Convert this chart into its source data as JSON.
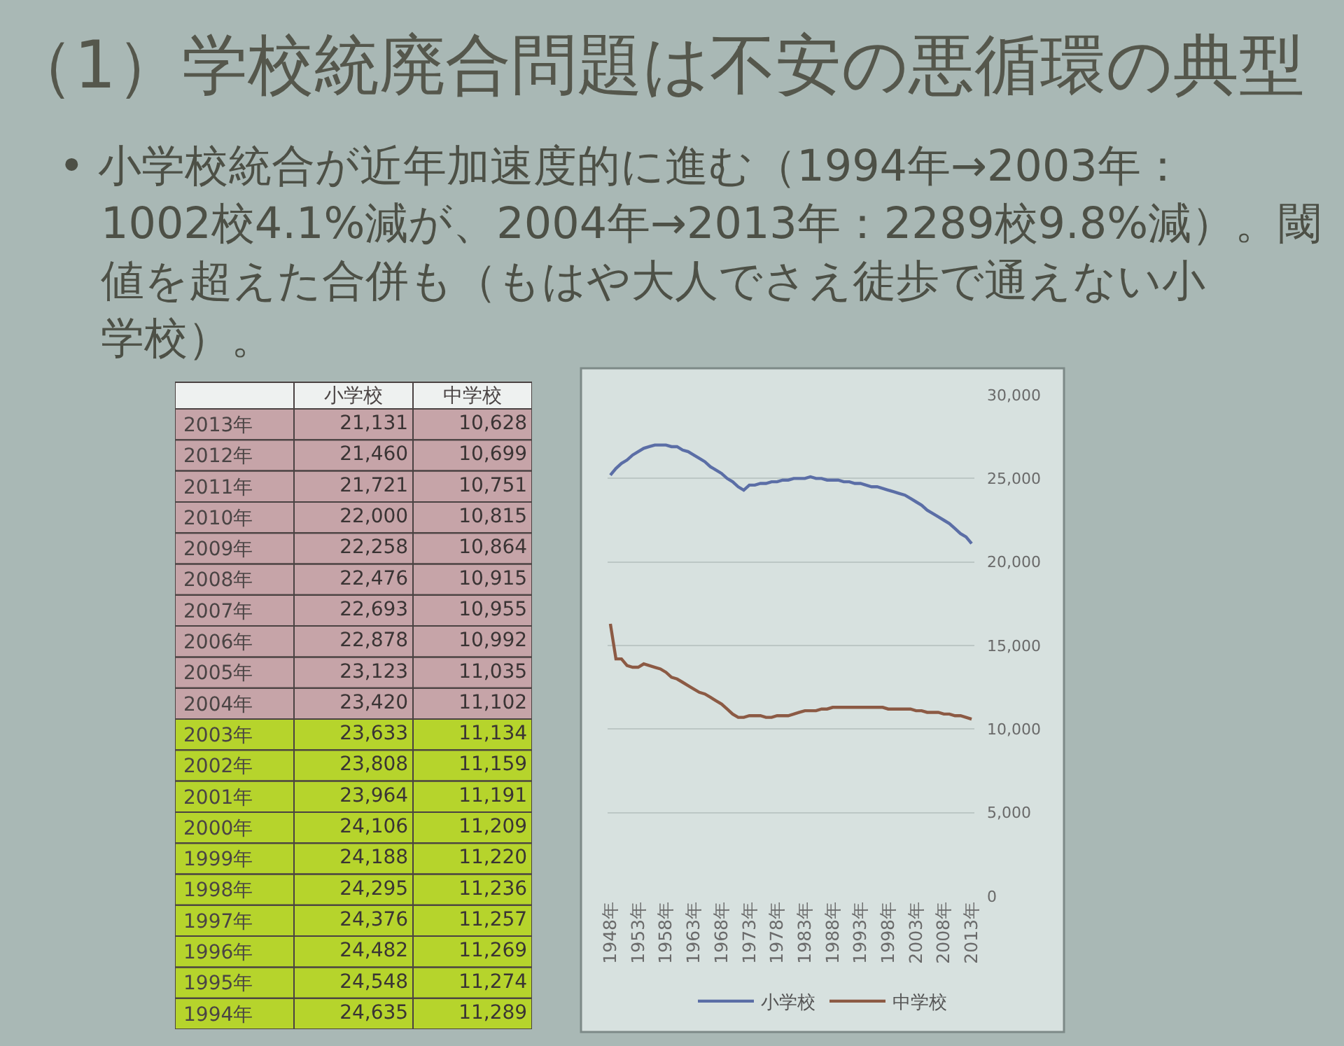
{
  "chart_data": [
    {
      "type": "heatmap",
      "title": "（1）学校統廃合問題は不安の悪循環の典型",
      "subtitle": "• 小学校統合が近年加速度的に進む（1994年→2003年：1002校4.1%減が、2004年→2013年：2289校9.8%減）。閾値を超えた合併も（もはや大人でさえ徒歩で通えない小学校）。",
      "categories": [
        "小学校",
        "中学校"
      ],
      "y_categories": [
        "2013年",
        "2012年",
        "2011年",
        "2010年",
        "2009年",
        "2008年",
        "2007年",
        "2006年",
        "2005年",
        "2004年",
        "2003年",
        "2002年",
        "2001年",
        "2000年",
        "1999年",
        "1998年",
        "1997年",
        "1996年",
        "1995年",
        "1994年"
      ],
      "cells": [
        [
          21131,
          10628
        ],
        [
          21460,
          10699
        ],
        [
          21721,
          10751
        ],
        [
          22000,
          10815
        ],
        [
          22258,
          10864
        ],
        [
          22476,
          10915
        ],
        [
          22693,
          10955
        ],
        [
          22878,
          10992
        ],
        [
          23123,
          11035
        ],
        [
          23420,
          11102
        ],
        [
          23633,
          11134
        ],
        [
          23808,
          11159
        ],
        [
          23964,
          11191
        ],
        [
          24106,
          11209
        ],
        [
          24188,
          11220
        ],
        [
          24295,
          11236
        ],
        [
          24376,
          11257
        ],
        [
          24482,
          11269
        ],
        [
          24548,
          11274
        ],
        [
          24635,
          11289
        ]
      ],
      "cell_labels": [
        [
          "21,131",
          "10,628"
        ],
        [
          "21,460",
          "10,699"
        ],
        [
          "21,721",
          "10,751"
        ],
        [
          "22,000",
          "10,815"
        ],
        [
          "22,258",
          "10,864"
        ],
        [
          "22,476",
          "10,915"
        ],
        [
          "22,693",
          "10,955"
        ],
        [
          "22,878",
          "10,992"
        ],
        [
          "23,123",
          "11,035"
        ],
        [
          "23,420",
          "11,102"
        ],
        [
          "23,633",
          "11,134"
        ],
        [
          "23,808",
          "11,159"
        ],
        [
          "23,964",
          "11,191"
        ],
        [
          "24,106",
          "11,209"
        ],
        [
          "24,188",
          "11,220"
        ],
        [
          "24,295",
          "11,236"
        ],
        [
          "24,376",
          "11,257"
        ],
        [
          "24,482",
          "11,269"
        ],
        [
          "24,548",
          "11,274"
        ],
        [
          "24,635",
          "11,289"
        ]
      ],
      "bands": [
        {
          "axis": "y",
          "from": "2013年",
          "to": "2004年",
          "color": "#c6a4a8"
        },
        {
          "axis": "y",
          "from": "2003年",
          "to": "1994年",
          "color": "#b6d42c"
        }
      ]
    },
    {
      "type": "line",
      "x": [
        1948,
        1949,
        1950,
        1951,
        1952,
        1953,
        1954,
        1955,
        1956,
        1957,
        1958,
        1959,
        1960,
        1961,
        1962,
        1963,
        1964,
        1965,
        1966,
        1967,
        1968,
        1969,
        1970,
        1971,
        1972,
        1973,
        1974,
        1975,
        1976,
        1977,
        1978,
        1979,
        1980,
        1981,
        1982,
        1983,
        1984,
        1985,
        1986,
        1987,
        1988,
        1989,
        1990,
        1991,
        1992,
        1993,
        1994,
        1995,
        1996,
        1997,
        1998,
        1999,
        2000,
        2001,
        2002,
        2003,
        2004,
        2005,
        2006,
        2007,
        2008,
        2009,
        2010,
        2011,
        2012,
        2013
      ],
      "xlim": [
        1947.5,
        2013.5
      ],
      "xticks": [
        {
          "value": 1948,
          "label": "1948年"
        },
        {
          "value": 1953,
          "label": "1953年"
        },
        {
          "value": 1958,
          "label": "1958年"
        },
        {
          "value": 1963,
          "label": "1963年"
        },
        {
          "value": 1968,
          "label": "1968年"
        },
        {
          "value": 1973,
          "label": "1973年"
        },
        {
          "value": 1978,
          "label": "1978年"
        },
        {
          "value": 1983,
          "label": "1983年"
        },
        {
          "value": 1988,
          "label": "1988年"
        },
        {
          "value": 1993,
          "label": "1993年"
        },
        {
          "value": 1998,
          "label": "1998年"
        },
        {
          "value": 2003,
          "label": "2003年"
        },
        {
          "value": 2008,
          "label": "2008年"
        },
        {
          "value": 2013,
          "label": "2013年"
        }
      ],
      "ylim": [
        0,
        30000
      ],
      "yticks": [
        0,
        {
          "value": 5000,
          "label": "5,000"
        },
        {
          "value": 10000,
          "label": "10,000"
        },
        {
          "value": 15000,
          "label": "15,000"
        },
        {
          "value": 20000,
          "label": "20,000"
        },
        {
          "value": 25000,
          "label": "25,000"
        },
        {
          "value": 30000,
          "label": "30,000"
        }
      ],
      "grid": "y",
      "legend": "bottom",
      "series": [
        {
          "name": "小学校",
          "color": "#5b6ea6",
          "values": [
            25200,
            25600,
            25900,
            26100,
            26400,
            26600,
            26800,
            26900,
            27000,
            27000,
            27000,
            26900,
            26900,
            26700,
            26600,
            26400,
            26200,
            26000,
            25700,
            25500,
            25300,
            25000,
            24800,
            24500,
            24300,
            24600,
            24600,
            24700,
            24700,
            24800,
            24800,
            24900,
            24900,
            25000,
            25000,
            25000,
            25100,
            25000,
            25000,
            24900,
            24900,
            24900,
            24800,
            24800,
            24700,
            24700,
            24600,
            24500,
            24500,
            24400,
            24300,
            24200,
            24100,
            24000,
            23800,
            23600,
            23400,
            23100,
            22900,
            22700,
            22500,
            22300,
            22000,
            21700,
            21500,
            21100
          ]
        },
        {
          "name": "中学校",
          "color": "#8c5a44",
          "values": [
            16300,
            14200,
            14200,
            13800,
            13700,
            13700,
            13900,
            13800,
            13700,
            13600,
            13400,
            13100,
            13000,
            12800,
            12600,
            12400,
            12200,
            12100,
            11900,
            11700,
            11500,
            11200,
            10900,
            10700,
            10700,
            10800,
            10800,
            10800,
            10700,
            10700,
            10800,
            10800,
            10800,
            10900,
            11000,
            11100,
            11100,
            11100,
            11200,
            11200,
            11300,
            11300,
            11300,
            11300,
            11300,
            11300,
            11300,
            11300,
            11300,
            11300,
            11200,
            11200,
            11200,
            11200,
            11200,
            11100,
            11100,
            11000,
            11000,
            11000,
            10900,
            10900,
            10800,
            10800,
            10700,
            10600
          ]
        }
      ]
    }
  ]
}
